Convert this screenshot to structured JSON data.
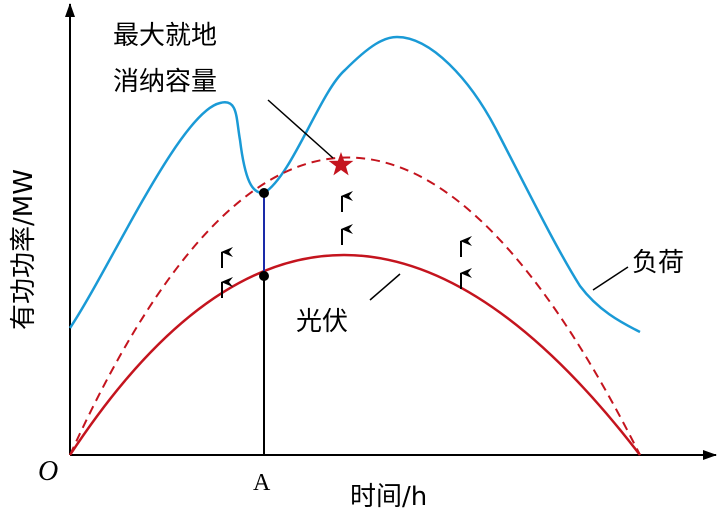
{
  "labels": {
    "y_axis": "有功功率/MW",
    "x_axis": "时间/h",
    "origin": "O",
    "point_a": "A",
    "annotation_line1": "最大就地",
    "annotation_line2": "消纳容量",
    "load": "负荷",
    "pv": "光伏"
  },
  "colors": {
    "load_curve": "#1a9ad6",
    "pv_curve": "#c4141e",
    "max_capacity_curve": "#c4141e",
    "star": "#c4141e",
    "segment_a": "#1a2aa8",
    "axes": "#000000"
  }
}
